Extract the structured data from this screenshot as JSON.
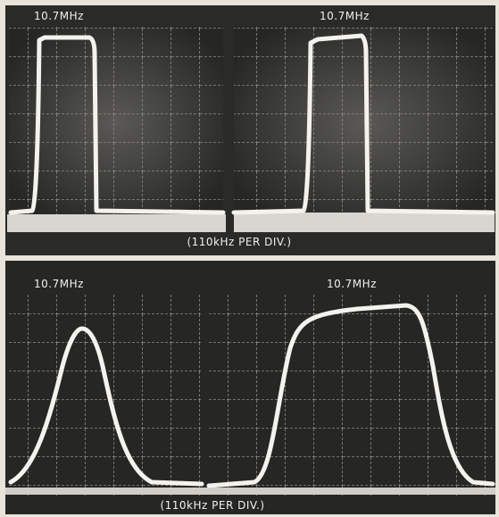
{
  "top_photo": {
    "left_label": "10.7MHz",
    "right_label": "10.7MHz",
    "caption": "(110kHz PER DIV.)"
  },
  "bottom_photo": {
    "left_label": "10.7MHz",
    "right_label": "10.7MHz",
    "caption": "(110kHz PER DIV.)"
  }
}
